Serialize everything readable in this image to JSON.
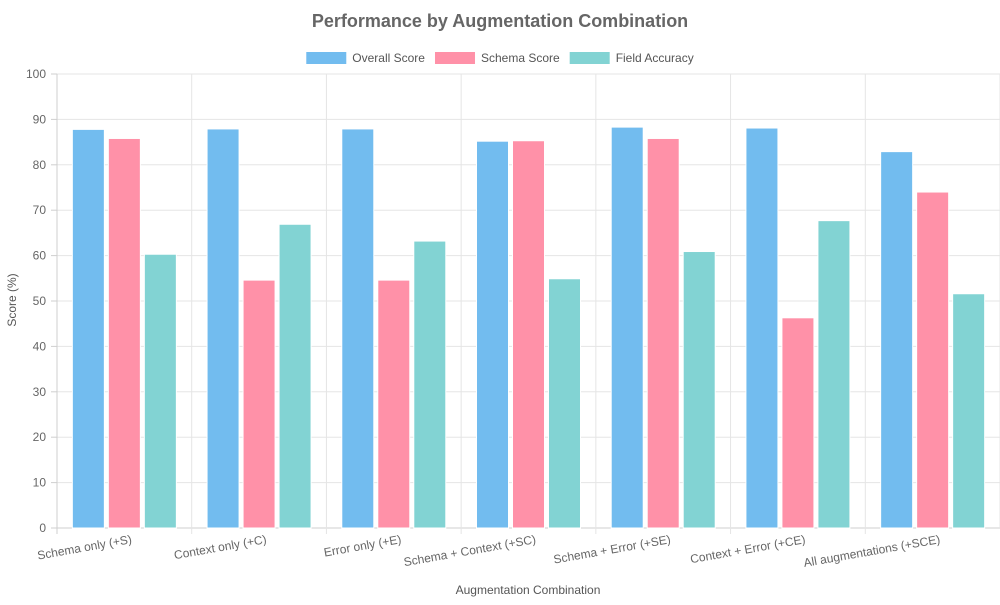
{
  "chart_data": {
    "type": "bar",
    "title": "Performance by Augmentation Combination",
    "xlabel": "Augmentation Combination",
    "ylabel": "Score (%)",
    "ylim": [
      0,
      100
    ],
    "yticks": [
      "0",
      "10",
      "20",
      "30",
      "40",
      "50",
      "60",
      "70",
      "80",
      "90",
      "100"
    ],
    "grid": true,
    "legend_position": "top",
    "categories": [
      "Schema only (+S)",
      "Context only (+C)",
      "Error only (+E)",
      "Schema + Context (+SC)",
      "Schema + Error (+SE)",
      "Context + Error (+CE)",
      "All augmentations (+SCE)"
    ],
    "series": [
      {
        "name": "Overall Score",
        "color": "#72bcef",
        "values": [
          87.8,
          87.9,
          87.9,
          85.2,
          88.3,
          88.1,
          82.9
        ]
      },
      {
        "name": "Schema Score",
        "color": "#ff91a8",
        "values": [
          85.8,
          54.6,
          54.6,
          85.3,
          85.8,
          46.3,
          74.0
        ]
      },
      {
        "name": "Field Accuracy",
        "color": "#82d3d3",
        "values": [
          60.3,
          66.9,
          63.2,
          54.9,
          60.9,
          67.7,
          51.6
        ]
      }
    ]
  }
}
